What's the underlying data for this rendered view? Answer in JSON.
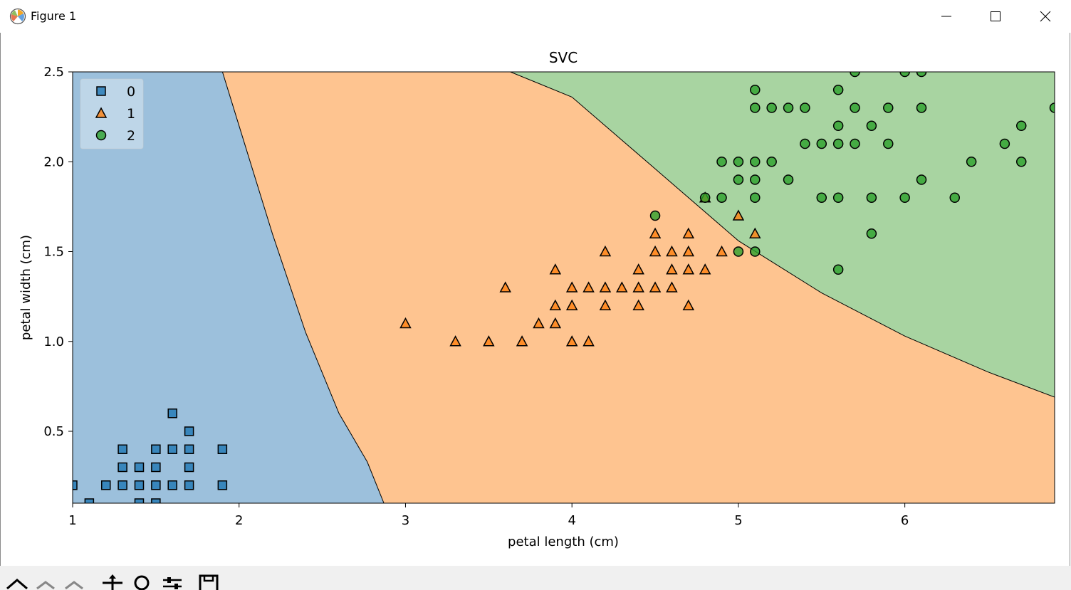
{
  "window": {
    "title": "Figure 1"
  },
  "colors": {
    "region_0": "#9cc0dc",
    "region_1": "#fec490",
    "region_2": "#a8d4a1",
    "marker_0": "#1f77b4",
    "marker_1": "#ff7f0e",
    "marker_2": "#2ca02c"
  },
  "toolbar": {
    "icons": [
      "home-icon",
      "back-icon",
      "forward-icon",
      "pan-icon",
      "zoom-icon",
      "configure-subplots-icon",
      "save-icon"
    ]
  },
  "chart_data": {
    "type": "scatter",
    "title": "SVC",
    "xlabel": "petal length (cm)",
    "ylabel": "petal width (cm)",
    "xlim": [
      1.0,
      6.9
    ],
    "ylim": [
      0.1,
      2.5
    ],
    "xticks": [
      1,
      2,
      3,
      4,
      5,
      6
    ],
    "xtick_labels": [
      "1",
      "2",
      "3",
      "4",
      "5",
      "6"
    ],
    "yticks": [
      0.5,
      1.0,
      1.5,
      2.0,
      2.5
    ],
    "ytick_labels": [
      "0.5",
      "1.0",
      "1.5",
      "2.0",
      "2.5"
    ],
    "legend": {
      "position": "top-left",
      "entries": [
        "0",
        "1",
        "2"
      ],
      "markers": [
        "square",
        "triangle",
        "circle"
      ]
    },
    "decision_boundaries": [
      {
        "between": [
          "0",
          "1"
        ],
        "points": [
          [
            1.9,
            2.5
          ],
          [
            2.0,
            2.2
          ],
          [
            2.2,
            1.6
          ],
          [
            2.4,
            1.05
          ],
          [
            2.6,
            0.6
          ],
          [
            2.77,
            0.33
          ],
          [
            2.87,
            0.1
          ]
        ]
      },
      {
        "between": [
          "1",
          "2"
        ],
        "points": [
          [
            3.63,
            2.5
          ],
          [
            4.0,
            2.36
          ],
          [
            4.5,
            1.96
          ],
          [
            5.0,
            1.56
          ],
          [
            5.5,
            1.27
          ],
          [
            6.0,
            1.03
          ],
          [
            6.5,
            0.83
          ],
          [
            6.9,
            0.69
          ]
        ]
      }
    ],
    "series": [
      {
        "name": "0",
        "marker": "square",
        "points": [
          [
            1.0,
            0.2
          ],
          [
            1.1,
            0.1
          ],
          [
            1.2,
            0.2
          ],
          [
            1.3,
            0.2
          ],
          [
            1.3,
            0.3
          ],
          [
            1.3,
            0.4
          ],
          [
            1.4,
            0.1
          ],
          [
            1.4,
            0.2
          ],
          [
            1.4,
            0.3
          ],
          [
            1.5,
            0.1
          ],
          [
            1.5,
            0.2
          ],
          [
            1.5,
            0.3
          ],
          [
            1.5,
            0.4
          ],
          [
            1.6,
            0.2
          ],
          [
            1.6,
            0.4
          ],
          [
            1.6,
            0.6
          ],
          [
            1.7,
            0.2
          ],
          [
            1.7,
            0.3
          ],
          [
            1.7,
            0.4
          ],
          [
            1.7,
            0.5
          ],
          [
            1.9,
            0.2
          ],
          [
            1.9,
            0.4
          ]
        ]
      },
      {
        "name": "1",
        "marker": "triangle",
        "points": [
          [
            3.0,
            1.1
          ],
          [
            3.3,
            1.0
          ],
          [
            3.5,
            1.0
          ],
          [
            3.6,
            1.3
          ],
          [
            3.7,
            1.0
          ],
          [
            3.8,
            1.1
          ],
          [
            3.9,
            1.1
          ],
          [
            3.9,
            1.2
          ],
          [
            3.9,
            1.4
          ],
          [
            4.0,
            1.0
          ],
          [
            4.0,
            1.2
          ],
          [
            4.0,
            1.3
          ],
          [
            4.1,
            1.0
          ],
          [
            4.1,
            1.3
          ],
          [
            4.2,
            1.2
          ],
          [
            4.2,
            1.3
          ],
          [
            4.2,
            1.5
          ],
          [
            4.3,
            1.3
          ],
          [
            4.4,
            1.2
          ],
          [
            4.4,
            1.3
          ],
          [
            4.4,
            1.4
          ],
          [
            4.5,
            1.3
          ],
          [
            4.5,
            1.5
          ],
          [
            4.5,
            1.6
          ],
          [
            4.6,
            1.3
          ],
          [
            4.6,
            1.4
          ],
          [
            4.6,
            1.5
          ],
          [
            4.7,
            1.2
          ],
          [
            4.7,
            1.4
          ],
          [
            4.7,
            1.5
          ],
          [
            4.7,
            1.6
          ],
          [
            4.8,
            1.4
          ],
          [
            4.8,
            1.8
          ],
          [
            4.9,
            1.5
          ],
          [
            5.0,
            1.7
          ],
          [
            5.1,
            1.6
          ]
        ]
      },
      {
        "name": "2",
        "marker": "circle",
        "points": [
          [
            4.5,
            1.7
          ],
          [
            4.8,
            1.8
          ],
          [
            4.9,
            1.8
          ],
          [
            4.9,
            2.0
          ],
          [
            5.0,
            1.5
          ],
          [
            5.0,
            1.9
          ],
          [
            5.0,
            2.0
          ],
          [
            5.1,
            1.5
          ],
          [
            5.1,
            1.8
          ],
          [
            5.1,
            1.9
          ],
          [
            5.1,
            2.0
          ],
          [
            5.1,
            2.3
          ],
          [
            5.1,
            2.4
          ],
          [
            5.2,
            2.0
          ],
          [
            5.2,
            2.3
          ],
          [
            5.3,
            1.9
          ],
          [
            5.3,
            2.3
          ],
          [
            5.4,
            2.1
          ],
          [
            5.4,
            2.3
          ],
          [
            5.5,
            1.8
          ],
          [
            5.5,
            2.1
          ],
          [
            5.6,
            1.4
          ],
          [
            5.6,
            1.8
          ],
          [
            5.6,
            2.1
          ],
          [
            5.6,
            2.2
          ],
          [
            5.6,
            2.4
          ],
          [
            5.7,
            2.1
          ],
          [
            5.7,
            2.3
          ],
          [
            5.7,
            2.5
          ],
          [
            5.8,
            1.6
          ],
          [
            5.8,
            1.8
          ],
          [
            5.8,
            2.2
          ],
          [
            5.9,
            2.1
          ],
          [
            5.9,
            2.3
          ],
          [
            6.0,
            1.8
          ],
          [
            6.0,
            2.5
          ],
          [
            6.1,
            1.9
          ],
          [
            6.1,
            2.3
          ],
          [
            6.1,
            2.5
          ],
          [
            6.3,
            1.8
          ],
          [
            6.4,
            2.0
          ],
          [
            6.6,
            2.1
          ],
          [
            6.7,
            2.0
          ],
          [
            6.7,
            2.2
          ],
          [
            6.9,
            2.3
          ]
        ]
      }
    ]
  }
}
